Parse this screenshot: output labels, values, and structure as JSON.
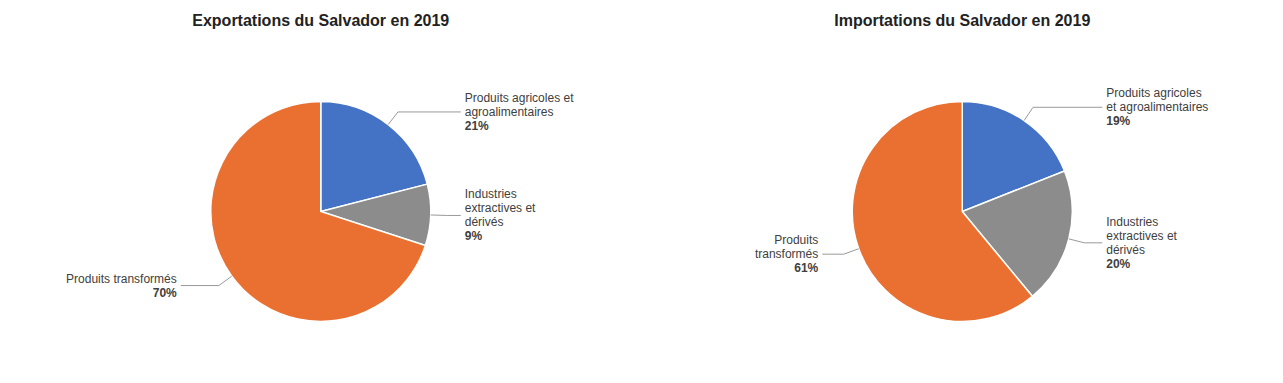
{
  "chart_data": [
    {
      "type": "pie",
      "title": "Exportations du Salvador en 2019",
      "categories": [
        "Produits agricoles et\nagroalimentaires",
        "Industries\nextractives et\ndérivés",
        "Produits transformés"
      ],
      "values": [
        21,
        9,
        70
      ],
      "value_labels": [
        "21%",
        "9%",
        "70%"
      ],
      "colors": [
        "#4472C4",
        "#8C8C8C",
        "#E97030"
      ],
      "data_labels": true
    },
    {
      "type": "pie",
      "title": "Importations du Salvador en 2019",
      "categories": [
        "Produits agricoles\net agroalimentaires",
        "Industries\nextractives et\ndérivés",
        "Produits\ntransformés"
      ],
      "values": [
        19,
        20,
        61
      ],
      "value_labels": [
        "19%",
        "20%",
        "61%"
      ],
      "colors": [
        "#4472C4",
        "#8C8C8C",
        "#E97030"
      ],
      "data_labels": true
    }
  ]
}
